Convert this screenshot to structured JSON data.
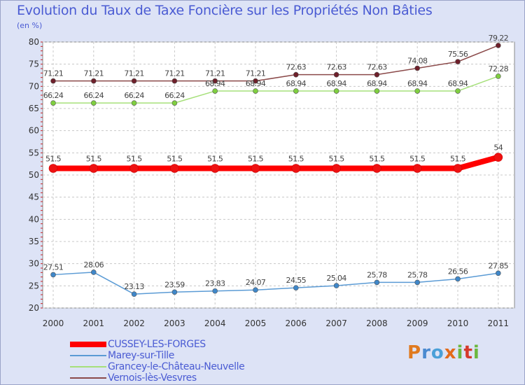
{
  "title": "Evolution du Taux de Taxe Foncière sur les Propriétés Non Bâties",
  "unit": "(en %)",
  "brand": "Proxiti",
  "chart_data": {
    "type": "line",
    "x": [
      "2000",
      "2001",
      "2002",
      "2003",
      "2004",
      "2005",
      "2006",
      "2007",
      "2008",
      "2009",
      "2010",
      "2011"
    ],
    "ylim": [
      20,
      80
    ],
    "yticks": [
      20,
      25,
      30,
      35,
      40,
      45,
      50,
      55,
      60,
      65,
      70,
      75,
      80
    ],
    "grid": true,
    "series": [
      {
        "name": "CUSSEY-LES-FORGES",
        "color": "#ff0000",
        "markerColor": "#ee1111",
        "values": [
          51.5,
          51.5,
          51.5,
          51.5,
          51.5,
          51.5,
          51.5,
          51.5,
          51.5,
          51.5,
          51.5,
          54
        ],
        "labels": [
          "51.5",
          "51.5",
          "51.5",
          "51.5",
          "51.5",
          "51.5",
          "51.5",
          "51.5",
          "51.5",
          "51.5",
          "51.5",
          "54"
        ]
      },
      {
        "name": "Marey-sur-Tille",
        "color": "#5b9bd5",
        "markerColor": "#3f87c9",
        "values": [
          27.51,
          28.06,
          23.13,
          23.59,
          23.83,
          24.07,
          24.55,
          25.04,
          25.78,
          25.78,
          26.56,
          27.85
        ],
        "labels": [
          "27.51",
          "28.06",
          "23.13",
          "23.59",
          "23.83",
          "24.07",
          "24.55",
          "25.04",
          "25.78",
          "25.78",
          "26.56",
          "27.85"
        ]
      },
      {
        "name": "Grancey-le-Château-Neuvelle",
        "color": "#a6e07a",
        "markerColor": "#7fcf3f",
        "values": [
          66.24,
          66.24,
          66.24,
          66.24,
          68.94,
          68.94,
          68.94,
          68.94,
          68.94,
          68.94,
          68.94,
          72.28
        ],
        "labels": [
          "66.24",
          "66.24",
          "66.24",
          "66.24",
          "68.94",
          "68.94",
          "68.94",
          "68.94",
          "68.94",
          "68.94",
          "68.94",
          "72.28"
        ]
      },
      {
        "name": "Vernois-lès-Vesvres",
        "color": "#8b4a4a",
        "markerColor": "#6e1f2a",
        "values": [
          71.21,
          71.21,
          71.21,
          71.21,
          71.21,
          71.21,
          72.63,
          72.63,
          72.63,
          74.08,
          75.56,
          79.22
        ],
        "labels": [
          "71.21",
          "71.21",
          "71.21",
          "71.21",
          "71.21",
          "71.21",
          "72.63",
          "72.63",
          "72.63",
          "74.08",
          "75.56",
          "79.22"
        ]
      }
    ]
  }
}
